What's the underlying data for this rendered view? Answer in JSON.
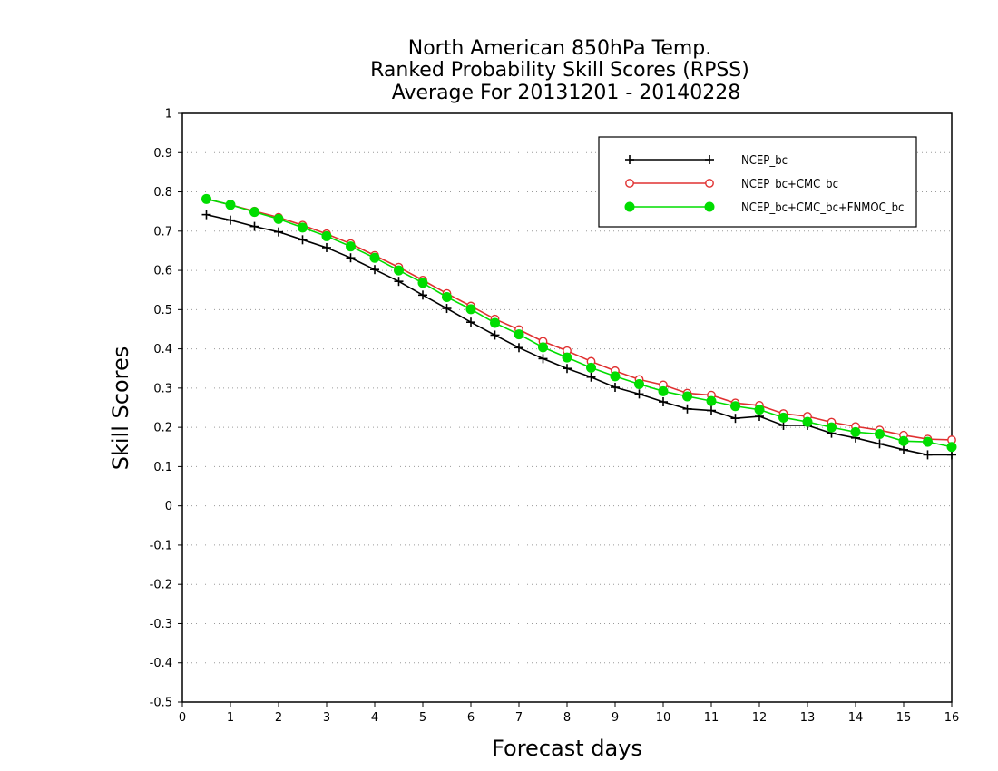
{
  "chart_data": {
    "type": "line",
    "title": [
      "North American 850hPa Temp.",
      "Ranked Probability Skill Scores (RPSS)",
      "Average For 20131201 - 20140228"
    ],
    "xlabel": "Forecast days",
    "ylabel": "Skill Scores",
    "xlim": [
      0,
      16
    ],
    "ylim": [
      -0.5,
      1
    ],
    "x_ticks": [
      "0",
      "1",
      "2",
      "3",
      "4",
      "5",
      "6",
      "7",
      "8",
      "9",
      "10",
      "11",
      "12",
      "13",
      "14",
      "15",
      "16"
    ],
    "y_ticks": [
      "-0.5",
      "-0.4",
      "-0.3",
      "-0.2",
      "-0.1",
      "0",
      "0.1",
      "0.2",
      "0.3",
      "0.4",
      "0.5",
      "0.6",
      "0.7",
      "0.8",
      "0.9",
      "1"
    ],
    "grid": true,
    "legend_position": "top-right",
    "x": [
      0.5,
      1,
      1.5,
      2,
      2.5,
      3,
      3.5,
      4,
      4.5,
      5,
      5.5,
      6,
      6.5,
      7,
      7.5,
      8,
      8.5,
      9,
      9.5,
      10,
      10.5,
      11,
      11.5,
      12,
      12.5,
      13,
      13.5,
      14,
      14.5,
      15,
      15.5,
      16
    ],
    "series": [
      {
        "name": "NCEP_bc",
        "color": "#000000",
        "marker": "plus",
        "values": [
          0.742,
          0.728,
          0.712,
          0.698,
          0.678,
          0.658,
          0.632,
          0.602,
          0.572,
          0.537,
          0.503,
          0.468,
          0.435,
          0.403,
          0.375,
          0.35,
          0.328,
          0.302,
          0.285,
          0.265,
          0.247,
          0.243,
          0.223,
          0.228,
          0.205,
          0.205,
          0.185,
          0.173,
          0.158,
          0.143,
          0.13,
          0.13
        ]
      },
      {
        "name": "NCEP_bc+CMC_bc",
        "color": "#e03030",
        "marker": "open-circle",
        "values": [
          0.782,
          0.767,
          0.751,
          0.735,
          0.715,
          0.693,
          0.668,
          0.638,
          0.608,
          0.575,
          0.541,
          0.509,
          0.476,
          0.449,
          0.419,
          0.395,
          0.368,
          0.344,
          0.322,
          0.308,
          0.287,
          0.282,
          0.262,
          0.256,
          0.235,
          0.228,
          0.213,
          0.202,
          0.193,
          0.18,
          0.17,
          0.168
        ]
      },
      {
        "name": "NCEP_bc+CMC_bc+FNMOC_bc",
        "color": "#00dd00",
        "marker": "filled-circle",
        "values": [
          0.782,
          0.767,
          0.749,
          0.731,
          0.709,
          0.687,
          0.661,
          0.632,
          0.6,
          0.568,
          0.532,
          0.501,
          0.466,
          0.437,
          0.404,
          0.378,
          0.352,
          0.33,
          0.31,
          0.292,
          0.279,
          0.267,
          0.254,
          0.245,
          0.225,
          0.214,
          0.2,
          0.188,
          0.183,
          0.165,
          0.163,
          0.15
        ]
      }
    ]
  }
}
